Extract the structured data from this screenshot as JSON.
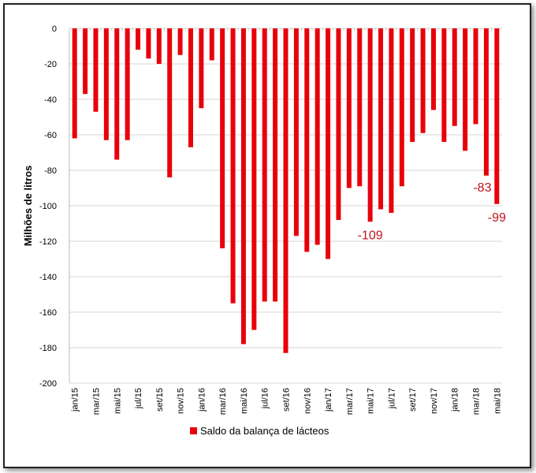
{
  "chart_data": {
    "type": "bar",
    "title": "",
    "xlabel": "",
    "ylabel": "Milhões de litros",
    "ylim": [
      -200,
      0
    ],
    "yticks": [
      0,
      -20,
      -40,
      -60,
      -80,
      -100,
      -120,
      -140,
      -160,
      -180,
      -200
    ],
    "grid": true,
    "legend": {
      "position": "bottom",
      "entries": [
        "Saldo da balança de lácteos"
      ]
    },
    "color": "#e8000b",
    "categories": [
      "jan/15",
      "fev/15",
      "mar/15",
      "abr/15",
      "mai/15",
      "jun/15",
      "jul/15",
      "ago/15",
      "set/15",
      "out/15",
      "nov/15",
      "dez/15",
      "jan/16",
      "fev/16",
      "mar/16",
      "abr/16",
      "mai/16",
      "jun/16",
      "jul/16",
      "ago/16",
      "set/16",
      "out/16",
      "nov/16",
      "dez/16",
      "jan/17",
      "fev/17",
      "mar/17",
      "abr/17",
      "mai/17",
      "jun/17",
      "jul/17",
      "ago/17",
      "set/17",
      "out/17",
      "nov/17",
      "dez/17",
      "jan/18",
      "fev/18",
      "mar/18",
      "abr/18",
      "mai/18"
    ],
    "tick_labels": [
      "jan/15",
      "mar/15",
      "mai/15",
      "jul/15",
      "set/15",
      "nov/15",
      "jan/16",
      "mar/16",
      "mai/16",
      "jul/16",
      "set/16",
      "nov/16",
      "jan/17",
      "mar/17",
      "mai/17",
      "jul/17",
      "set/17",
      "nov/17",
      "jan/18",
      "mar/18",
      "mai/18"
    ],
    "values": [
      -62,
      -37,
      -47,
      -63,
      -74,
      -63,
      -12,
      -17,
      -20,
      -84,
      -15,
      -67,
      -45,
      -18,
      -124,
      -155,
      -178,
      -170,
      -154,
      -154,
      -183,
      -117,
      -126,
      -122,
      -130,
      -108,
      -90,
      -89,
      -109,
      -102,
      -104,
      -89,
      -64,
      -59,
      -46,
      -64,
      -55,
      -69,
      -54,
      -83,
      -99
    ],
    "data_labels": [
      {
        "index": 28,
        "text": "-109"
      },
      {
        "index": 39,
        "text": "-83"
      },
      {
        "index": 40,
        "text": "-99"
      }
    ]
  }
}
